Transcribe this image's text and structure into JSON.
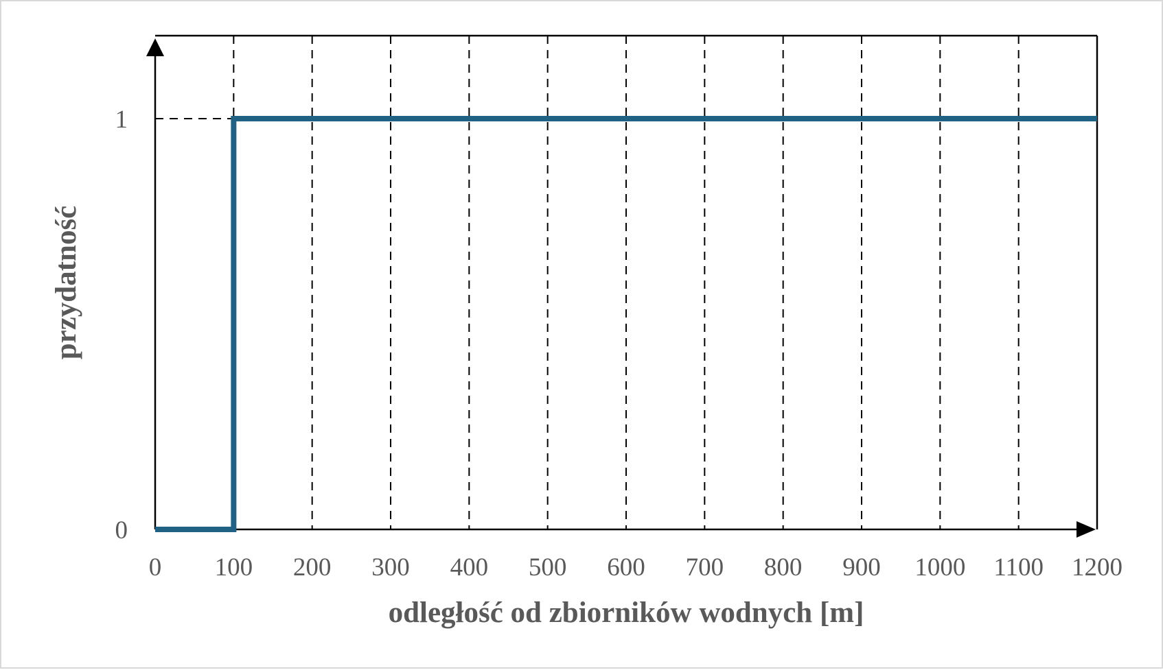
{
  "chart_data": {
    "type": "line",
    "title": "",
    "xlabel": "odległość od zbiorników wodnych [m]",
    "ylabel": "przydatność",
    "xlim": [
      0,
      1200
    ],
    "ylim": [
      0,
      1
    ],
    "x_ticks": [
      "0",
      "100",
      "200",
      "300",
      "400",
      "500",
      "600",
      "700",
      "800",
      "900",
      "1000",
      "1100",
      "1200"
    ],
    "y_ticks": [
      "0",
      "1"
    ],
    "grid": "vertical dashed at every 100 m, horizontal dashed at y = 1",
    "legend": "none",
    "series": [
      {
        "color": "#1f6283",
        "x": [
          0,
          100,
          100,
          1200
        ],
        "y": [
          0,
          0,
          1,
          1
        ]
      }
    ]
  },
  "colors": {
    "series": "#1f6283",
    "axis": "#000000",
    "text": "#595959",
    "frame": "#d9d9d9"
  }
}
